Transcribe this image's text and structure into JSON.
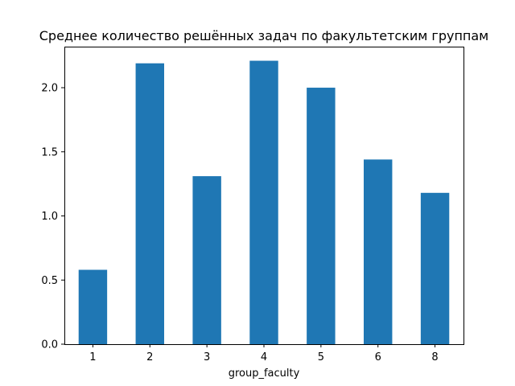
{
  "chart_data": {
    "type": "bar",
    "title": "Среднее количество решённых задач по факультетским группам",
    "xlabel": "group_faculty",
    "ylabel": "",
    "categories": [
      "1",
      "2",
      "3",
      "4",
      "5",
      "6",
      "8"
    ],
    "values": [
      0.58,
      2.19,
      1.31,
      2.21,
      2.0,
      1.44,
      1.18
    ],
    "ylim": [
      0,
      2.32
    ],
    "yticks": [
      0.0,
      0.5,
      1.0,
      1.5,
      2.0
    ],
    "ytick_labels": [
      "0.0",
      "0.5",
      "1.0",
      "1.5",
      "2.0"
    ],
    "grid": false,
    "legend": "none",
    "bar_color": "#1f77b4"
  }
}
